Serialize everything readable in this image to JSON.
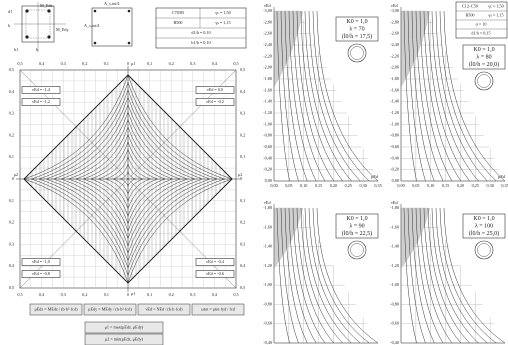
{
  "left": {
    "section_labels": [
      "M_Edz",
      "M_Edy",
      "A_s,tot/4",
      "A_s,tot/4",
      "d1",
      "b1",
      "h",
      "b"
    ],
    "table": [
      [
        "C70/85",
        "γc = 1,50"
      ],
      [
        "B500",
        "γs = 1,15"
      ],
      [
        "d1/h = 0,10"
      ],
      [
        "b1/b = 0,10"
      ]
    ],
    "x_ticks": [
      "0,5",
      "0,4",
      "0,3",
      "0,2",
      "0,1",
      "0",
      "0,1",
      "0,2",
      "0,3",
      "0,4",
      "0,5"
    ],
    "y_ticks": [
      "0,5",
      "0,4",
      "0,3",
      "0,2",
      "0,1",
      "0",
      "0,1",
      "0,2",
      "0,3",
      "0,4",
      "0,5"
    ],
    "axis_labels": [
      "μ1",
      "μ1",
      "μ2",
      "μ2"
    ],
    "corner_labels": [
      "νEd = -1,4",
      "νEd = 0,0",
      "νEd = -1,2",
      "νEd = -0,2",
      "νEd = -1,0",
      "νEd = -0,4",
      "νEd = -0,8",
      "νEd = -0,6"
    ],
    "formulas": [
      "μEdz = MEdz / (b·h²·fcd)",
      "μEdy = MEdy / (h·b²·fcd)",
      "νEd = NEd / (b·h·fcd)",
      "ωtot = ρtot·fyd / fcd",
      "μ1 = max(μEdz, μEdy)",
      "μ2 = min(μEdz, μEdy)"
    ]
  },
  "right": {
    "table": [
      [
        "C12–C50",
        "γc = 1,50"
      ],
      [
        "B500",
        "γs = 1,15"
      ],
      [
        "α = 10"
      ],
      [
        "d1/h = 0,15"
      ]
    ],
    "axis_labels": [
      "νEd",
      "μEd"
    ],
    "x_ticks": [
      "0,00",
      "0,05",
      "0,10",
      "0,15",
      "0,20",
      "0,25",
      "0,30",
      "0,35"
    ],
    "panels": [
      {
        "box": [
          "K0 = 1,0",
          "λ = 70",
          "(l0/h = 17,5)"
        ],
        "y_ticks": [
          "-3,00",
          "-2,80",
          "-2,60",
          "-2,40",
          "-2,20",
          "-2,00",
          "-1,80",
          "-1,60",
          "-1,40",
          "-1,20",
          "-1,00",
          "-0,80",
          "-0,60",
          "-0,40",
          "-0,20",
          "0,00"
        ]
      },
      {
        "box": [
          "K0 = 1,0",
          "λ = 80",
          "(l0/h = 20,0)"
        ],
        "y_ticks": [
          "-3,00",
          "-2,80",
          "-2,60",
          "-2,40",
          "-2,20",
          "-2,00",
          "-1,80",
          "-1,60",
          "-1,40",
          "-1,20",
          "-1,00",
          "-0,80",
          "-0,60",
          "-0,40",
          "-0,20",
          "0,00"
        ]
      },
      {
        "box": [
          "K0 = 1,0",
          "λ = 90",
          "(l0/h = 22,5)"
        ],
        "y_ticks": [
          "-1,80",
          "-1,60",
          "-1,40",
          "-1,20",
          "-1,00",
          "-0,80",
          "-0,60",
          "-0,40"
        ]
      },
      {
        "box": [
          "K0 = 1,0",
          "λ = 100",
          "(l0/h = 25,0)"
        ],
        "y_ticks": [
          "-1,80",
          "-1,60",
          "-1,40",
          "-1,20",
          "-1,00",
          "-0,80",
          "-0,60",
          "-0,40"
        ]
      }
    ]
  }
}
